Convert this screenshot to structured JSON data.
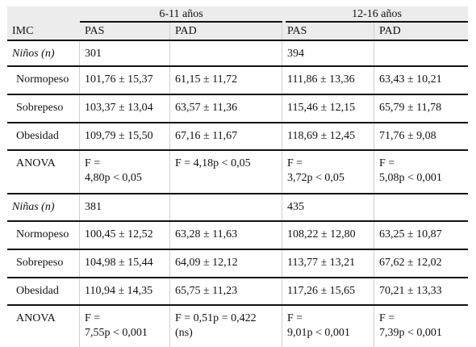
{
  "table": {
    "group_headers": [
      "6-11 años",
      "12-16 años"
    ],
    "row_header_label": "IMC",
    "column_headers": [
      "PAS",
      "PAD",
      "PAS",
      "PAD"
    ],
    "rows": [
      {
        "label": "Niños (n)",
        "italic": true,
        "cells": [
          "301",
          "",
          "394",
          ""
        ]
      },
      {
        "label": "Normopeso",
        "italic": false,
        "cells": [
          "101,76 ± 15,37",
          "61,15 ± 11,72",
          "111,86 ± 13,36",
          "63,43 ± 10,21"
        ]
      },
      {
        "label": "Sobrepeso",
        "italic": false,
        "cells": [
          "103,37 ± 13,04",
          "63,57 ± 11,36",
          "115,46 ± 12,15",
          "65,79 ± 11,78"
        ]
      },
      {
        "label": "Obesidad",
        "italic": false,
        "cells": [
          "109,79 ± 15,50",
          "67,16 ± 11,67",
          "118,69 ± 12,45",
          "71,76 ± 9,08"
        ]
      },
      {
        "label": "ANOVA",
        "italic": false,
        "cells": [
          "F =\n4,80p < 0,05",
          "F = 4,18p < 0,05",
          "F =\n3,72p < 0,05",
          "F =\n5,08p < 0,001"
        ]
      },
      {
        "label": "Niñas (n)",
        "italic": true,
        "cells": [
          "381",
          "",
          "435",
          ""
        ]
      },
      {
        "label": "Normopeso",
        "italic": false,
        "cells": [
          "100,45 ± 12,52",
          "63,28 ± 11,63",
          "108,22 ± 12,80",
          "63,25 ± 10,87"
        ]
      },
      {
        "label": "Sobrepeso",
        "italic": false,
        "cells": [
          "104,98 ± 15,44",
          "64,09 ± 12,12",
          "113,77 ± 13,21",
          "67,62 ± 12,02"
        ]
      },
      {
        "label": "Obesidad",
        "italic": false,
        "cells": [
          "110,94 ± 14,35",
          "65,75 ± 11,23",
          "117,26 ± 15,65",
          "70,21 ± 13,33"
        ]
      },
      {
        "label": "ANOVA",
        "italic": false,
        "cells": [
          "F =\n7,55p < 0,001",
          "F = 0,51p = 0,422\n(ns)",
          "F =\n9,01p < 0,001",
          "F =\n7,39p < 0,001"
        ]
      }
    ]
  }
}
